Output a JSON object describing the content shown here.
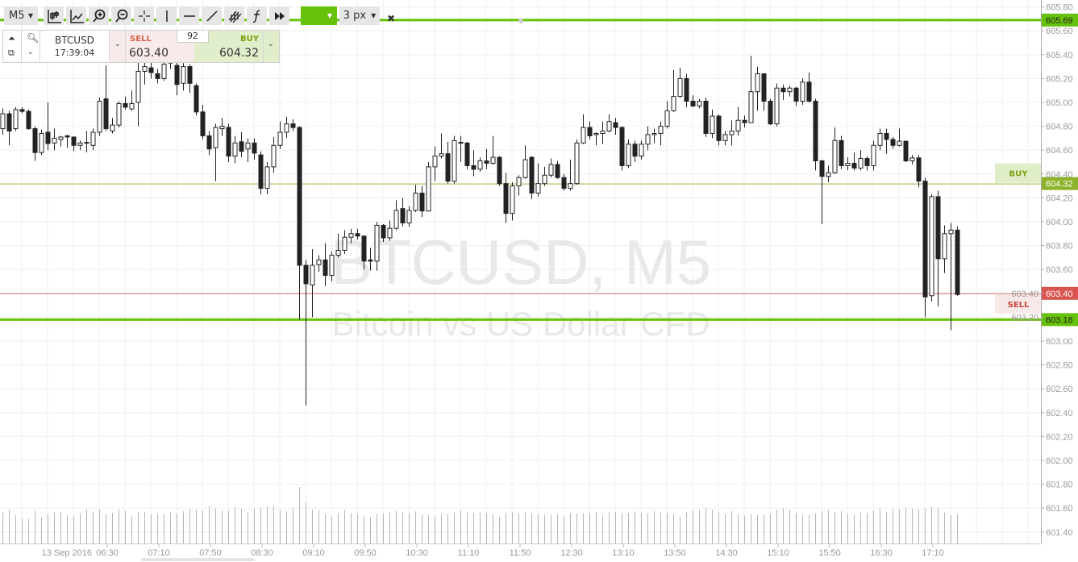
{
  "toolbar": {
    "timeframe": "M5",
    "tools": [
      "candlestick-chart-icon",
      "line-chart-icon",
      "zoom-in-icon",
      "zoom-out-icon",
      "crosshair-icon",
      "vertical-line-icon",
      "horizontal-line-icon",
      "trend-line-icon",
      "fibonacci-channel-icon",
      "function-icon",
      "fast-forward-icon"
    ],
    "line_color": "#66c10a",
    "line_width": "3 px"
  },
  "trade_panel": {
    "symbol": "BTCUSD",
    "time": "17:39:04",
    "sell_label": "SELL",
    "sell_price": "603.40",
    "buy_label": "BUY",
    "buy_price": "604.32",
    "spread": "92"
  },
  "watermark": {
    "title": "BTCUSD, M5",
    "subtitle": "Bitcoin vs US Dollar CFD"
  },
  "colors": {
    "accent_green": "#66c10a",
    "buy": "#8db32a",
    "sell": "#d9534f",
    "bull": "#ffffff",
    "bear": "#222222"
  },
  "chart_data": {
    "type": "candlestick",
    "symbol": "BTCUSD",
    "timeframe": "M5",
    "ylim": [
      601.3,
      605.86
    ],
    "y_ticks": [
      "605.80",
      "605.60",
      "605.40",
      "605.20",
      "605.00",
      "604.80",
      "604.60",
      "604.40",
      "604.20",
      "604.00",
      "603.80",
      "603.60",
      "603.40",
      "603.20",
      "603.00",
      "602.80",
      "602.60",
      "602.40",
      "602.20",
      "602.00",
      "601.80",
      "601.60",
      "601.40"
    ],
    "x_ticks": [
      "13 Sep 2016",
      "06:30",
      "07:10",
      "07:50",
      "08:30",
      "09:10",
      "09:50",
      "10:30",
      "11:10",
      "11:50",
      "12:30",
      "13:10",
      "13:50",
      "14:30",
      "15:10",
      "15:50",
      "16:30",
      "17:10"
    ],
    "grid": true,
    "levels": [
      {
        "price": 605.69,
        "label": "605.69",
        "kind": "drawn-line"
      },
      {
        "price": 604.32,
        "label": "604.32",
        "kind": "buy",
        "tag": "BUY"
      },
      {
        "price": 603.4,
        "label": "603.40",
        "kind": "sell",
        "tag": "SELL"
      },
      {
        "price": 603.18,
        "label": "603.18",
        "kind": "drawn-line"
      }
    ],
    "ohlc": [
      [
        604.78,
        604.95,
        604.73,
        604.905
      ],
      [
        604.905,
        604.93,
        604.64,
        604.76
      ],
      [
        604.78,
        604.96,
        604.76,
        604.94
      ],
      [
        604.94,
        604.96,
        604.91,
        604.925
      ],
      [
        604.925,
        604.94,
        604.77,
        604.78
      ],
      [
        604.78,
        604.8,
        604.51,
        604.58
      ],
      [
        604.58,
        604.77,
        604.56,
        604.74
      ],
      [
        604.75,
        605.0,
        604.6,
        604.655
      ],
      [
        604.66,
        604.78,
        604.6,
        604.7
      ],
      [
        604.69,
        604.72,
        604.63,
        604.71
      ],
      [
        604.72,
        604.73,
        604.62,
        604.71
      ],
      [
        604.71,
        604.71,
        604.59,
        604.64
      ],
      [
        604.64,
        604.68,
        604.6,
        604.66
      ],
      [
        604.66,
        604.76,
        604.58,
        604.665
      ],
      [
        604.64,
        604.78,
        604.6,
        604.75
      ],
      [
        604.75,
        605.04,
        604.72,
        605.01
      ],
      [
        605.03,
        605.31,
        604.76,
        604.78
      ],
      [
        604.76,
        604.87,
        604.74,
        604.81
      ],
      [
        604.81,
        605.01,
        604.79,
        604.99
      ],
      [
        604.99,
        605.05,
        604.94,
        604.96
      ],
      [
        604.945,
        605.1,
        604.93,
        604.99
      ],
      [
        605.0,
        605.4,
        604.8,
        605.26
      ],
      [
        605.26,
        605.4,
        605.15,
        605.3
      ],
      [
        605.29,
        605.38,
        605.2,
        605.25
      ],
      [
        605.24,
        605.28,
        605.16,
        605.2
      ],
      [
        605.2,
        605.4,
        605.18,
        605.32
      ],
      [
        605.36,
        605.42,
        605.28,
        605.33
      ],
      [
        605.31,
        605.38,
        605.06,
        605.15
      ],
      [
        605.16,
        605.33,
        605.1,
        605.3
      ],
      [
        605.3,
        605.32,
        605.08,
        605.16
      ],
      [
        605.14,
        605.16,
        604.89,
        604.92
      ],
      [
        604.92,
        604.98,
        604.69,
        604.72
      ],
      [
        604.72,
        604.76,
        604.56,
        604.61
      ],
      [
        604.62,
        604.82,
        604.34,
        604.79
      ],
      [
        604.78,
        604.87,
        604.72,
        604.8
      ],
      [
        604.79,
        604.82,
        604.5,
        604.55
      ],
      [
        604.55,
        604.72,
        604.49,
        604.66
      ],
      [
        604.67,
        604.75,
        604.54,
        604.59
      ],
      [
        604.61,
        604.7,
        604.5,
        604.66
      ],
      [
        604.66,
        604.7,
        604.52,
        604.575
      ],
      [
        604.56,
        604.59,
        604.23,
        604.28
      ],
      [
        604.28,
        604.5,
        604.23,
        604.46
      ],
      [
        604.46,
        604.71,
        604.41,
        604.64
      ],
      [
        604.64,
        604.84,
        604.61,
        604.75
      ],
      [
        604.75,
        604.88,
        604.7,
        604.82
      ],
      [
        604.82,
        604.86,
        604.76,
        604.79
      ],
      [
        604.79,
        604.8,
        603.18,
        603.635
      ],
      [
        603.635,
        603.68,
        602.46,
        603.48
      ],
      [
        603.47,
        603.77,
        603.2,
        603.635
      ],
      [
        603.64,
        603.72,
        603.58,
        603.68
      ],
      [
        603.68,
        603.82,
        603.46,
        603.55
      ],
      [
        603.55,
        603.75,
        603.5,
        603.72
      ],
      [
        603.72,
        603.9,
        603.7,
        603.76
      ],
      [
        603.76,
        603.93,
        603.73,
        603.87
      ],
      [
        603.87,
        603.94,
        603.82,
        603.9
      ],
      [
        603.9,
        603.94,
        603.85,
        603.88
      ],
      [
        603.88,
        603.88,
        603.6,
        603.67
      ],
      [
        603.68,
        603.78,
        603.59,
        603.67
      ],
      [
        603.67,
        604.0,
        603.59,
        603.97
      ],
      [
        603.97,
        603.98,
        603.83,
        603.865
      ],
      [
        603.865,
        604.01,
        603.84,
        603.945
      ],
      [
        603.945,
        604.18,
        603.93,
        604.095
      ],
      [
        604.11,
        604.2,
        603.96,
        603.99
      ],
      [
        603.99,
        604.13,
        603.96,
        604.095
      ],
      [
        604.095,
        604.31,
        604.08,
        604.24
      ],
      [
        604.24,
        604.3,
        604.04,
        604.09
      ],
      [
        604.09,
        604.5,
        604.09,
        604.46
      ],
      [
        604.46,
        604.63,
        604.34,
        604.55
      ],
      [
        604.55,
        604.74,
        604.53,
        604.57
      ],
      [
        604.57,
        604.67,
        604.32,
        604.34
      ],
      [
        604.34,
        604.72,
        604.32,
        604.68
      ],
      [
        604.665,
        604.72,
        604.5,
        604.66
      ],
      [
        604.66,
        604.67,
        604.44,
        604.47
      ],
      [
        604.47,
        604.6,
        604.38,
        604.44
      ],
      [
        604.44,
        604.54,
        604.42,
        604.51
      ],
      [
        604.51,
        604.61,
        604.44,
        604.49
      ],
      [
        604.49,
        604.72,
        604.48,
        604.54
      ],
      [
        604.54,
        604.55,
        604.3,
        604.32
      ],
      [
        604.32,
        604.41,
        603.99,
        604.07
      ],
      [
        604.07,
        604.33,
        604.01,
        604.3
      ],
      [
        604.3,
        604.39,
        604.22,
        604.37
      ],
      [
        604.37,
        604.64,
        604.36,
        604.52
      ],
      [
        604.54,
        604.55,
        604.19,
        604.24
      ],
      [
        604.24,
        604.49,
        604.21,
        604.32
      ],
      [
        604.32,
        604.46,
        604.3,
        604.39
      ],
      [
        604.39,
        604.53,
        604.37,
        604.48
      ],
      [
        604.48,
        604.51,
        604.36,
        604.37
      ],
      [
        604.37,
        604.4,
        604.26,
        604.28
      ],
      [
        604.28,
        604.52,
        604.26,
        604.32
      ],
      [
        604.32,
        604.69,
        604.31,
        604.66
      ],
      [
        604.66,
        604.9,
        604.65,
        604.79
      ],
      [
        604.79,
        604.84,
        604.69,
        604.72
      ],
      [
        604.73,
        604.75,
        604.64,
        604.74
      ],
      [
        604.74,
        604.84,
        604.65,
        604.76
      ],
      [
        604.76,
        604.9,
        604.75,
        604.84
      ],
      [
        604.83,
        604.87,
        604.73,
        604.79
      ],
      [
        604.79,
        604.8,
        604.43,
        604.47
      ],
      [
        604.47,
        604.69,
        604.45,
        604.65
      ],
      [
        604.65,
        604.68,
        604.5,
        604.55
      ],
      [
        604.55,
        604.68,
        604.52,
        604.65
      ],
      [
        604.65,
        604.8,
        604.6,
        604.73
      ],
      [
        604.73,
        604.78,
        604.66,
        604.74
      ],
      [
        604.74,
        604.84,
        604.64,
        604.8
      ],
      [
        604.8,
        605.01,
        604.78,
        604.93
      ],
      [
        604.93,
        605.27,
        604.92,
        605.05
      ],
      [
        605.05,
        605.29,
        605.04,
        605.2
      ],
      [
        605.2,
        605.24,
        604.96,
        605.01
      ],
      [
        605.01,
        605.06,
        604.96,
        604.97
      ],
      [
        604.97,
        605.03,
        604.95,
        605.01
      ],
      [
        605.01,
        605.04,
        604.71,
        604.74
      ],
      [
        604.74,
        604.94,
        604.7,
        604.885
      ],
      [
        604.885,
        604.9,
        604.64,
        604.68
      ],
      [
        604.68,
        604.76,
        604.64,
        604.73
      ],
      [
        604.73,
        604.85,
        604.64,
        604.76
      ],
      [
        604.76,
        604.96,
        604.72,
        604.85
      ],
      [
        604.85,
        604.89,
        604.79,
        604.83
      ],
      [
        604.83,
        605.39,
        604.83,
        605.09
      ],
      [
        605.09,
        605.3,
        604.93,
        605.24
      ],
      [
        605.24,
        605.24,
        604.93,
        605.01
      ],
      [
        605.01,
        605.03,
        604.81,
        604.82
      ],
      [
        604.82,
        605.16,
        604.8,
        605.12
      ],
      [
        605.12,
        605.15,
        605.02,
        605.09
      ],
      [
        605.09,
        605.14,
        605.05,
        605.12
      ],
      [
        605.12,
        605.13,
        604.97,
        605.01
      ],
      [
        605.01,
        605.2,
        604.98,
        605.17
      ],
      [
        605.17,
        605.25,
        605.0,
        605.01
      ],
      [
        605.01,
        605.03,
        604.43,
        604.51
      ],
      [
        604.51,
        604.52,
        603.98,
        604.38
      ],
      [
        604.38,
        604.47,
        604.33,
        604.41
      ],
      [
        604.41,
        604.79,
        604.4,
        604.68
      ],
      [
        604.68,
        604.72,
        604.44,
        604.47
      ],
      [
        604.47,
        604.54,
        604.43,
        604.49
      ],
      [
        604.49,
        604.58,
        604.43,
        604.45
      ],
      [
        604.45,
        604.6,
        604.43,
        604.53
      ],
      [
        604.53,
        604.55,
        604.43,
        604.47
      ],
      [
        604.47,
        604.68,
        604.43,
        604.64
      ],
      [
        604.64,
        604.78,
        604.6,
        604.74
      ],
      [
        604.74,
        604.78,
        604.57,
        604.69
      ],
      [
        604.69,
        604.71,
        604.61,
        604.64
      ],
      [
        604.64,
        604.78,
        604.63,
        604.675
      ],
      [
        604.675,
        604.675,
        604.5,
        604.51
      ],
      [
        604.51,
        604.56,
        604.48,
        604.535
      ],
      [
        604.535,
        604.56,
        604.29,
        604.34
      ],
      [
        604.34,
        604.37,
        603.2,
        603.37
      ],
      [
        603.38,
        604.23,
        603.33,
        604.21
      ],
      [
        604.21,
        604.26,
        603.29,
        603.69
      ],
      [
        603.69,
        603.97,
        603.57,
        603.9
      ],
      [
        603.9,
        603.99,
        603.09,
        603.93
      ],
      [
        603.93,
        603.96,
        603.38,
        603.39
      ]
    ],
    "volume": [
      55,
      60,
      50,
      45,
      44,
      58,
      47,
      52,
      56,
      56,
      50,
      48,
      54,
      60,
      57,
      60,
      52,
      54,
      61,
      58,
      48,
      56,
      56,
      52,
      52,
      52,
      55,
      53,
      57,
      61,
      60,
      58,
      66,
      62,
      59,
      58,
      64,
      61,
      55,
      62,
      63,
      65,
      67,
      60,
      57,
      63,
      100,
      72,
      60,
      59,
      52,
      48,
      54,
      59,
      54,
      52,
      48,
      46,
      52,
      53,
      55,
      58,
      55,
      54,
      57,
      51,
      50,
      48,
      52,
      53,
      55,
      59,
      55,
      54,
      55,
      54,
      52,
      47,
      54,
      55,
      54,
      55,
      53,
      51,
      51,
      51,
      52,
      48,
      54,
      53,
      53,
      54,
      56,
      50,
      55,
      56,
      53,
      54,
      57,
      54,
      54,
      57,
      55,
      54,
      52,
      47,
      56,
      58,
      60,
      62,
      60,
      55,
      52,
      58,
      52,
      49,
      51,
      50,
      51,
      53,
      60,
      63,
      60,
      54,
      50,
      51,
      53,
      57,
      59,
      56,
      58,
      52,
      51,
      55,
      54,
      59,
      62,
      56,
      61,
      60,
      63,
      62,
      60,
      62,
      65,
      63,
      55,
      50,
      52
    ]
  }
}
